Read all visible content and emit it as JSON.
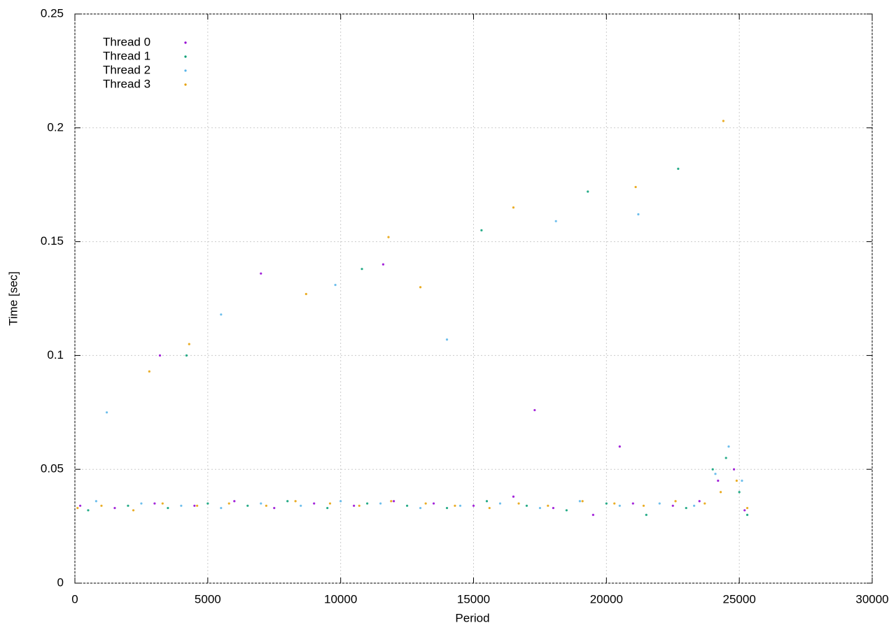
{
  "chart_data": {
    "type": "scatter",
    "x_label": "Period",
    "y_label": "Time [sec]",
    "xlim": [
      0,
      30000
    ],
    "xticks": [
      0,
      5000,
      10000,
      15000,
      20000,
      25000,
      30000
    ],
    "ylim": [
      0,
      0.25
    ],
    "yticks": [
      0,
      0.05,
      0.1,
      0.15,
      0.2,
      0.25
    ],
    "grid": true,
    "legend": "top-left",
    "series": [
      {
        "name": "Thread 0",
        "color": "#9400d3",
        "x": [
          200,
          1500,
          3000,
          4500,
          6000,
          7500,
          9000,
          10500,
          12000,
          13500,
          15000,
          16500,
          18000,
          19500,
          21000,
          22500,
          23500,
          24200,
          24800,
          25200,
          3200,
          7000,
          11600,
          17300,
          20500
        ],
        "values": [
          0.034,
          0.033,
          0.035,
          0.034,
          0.036,
          0.033,
          0.035,
          0.034,
          0.036,
          0.035,
          0.034,
          0.038,
          0.033,
          0.03,
          0.035,
          0.034,
          0.036,
          0.045,
          0.05,
          0.032,
          0.1,
          0.136,
          0.14,
          0.076,
          0.06
        ]
      },
      {
        "name": "Thread 1",
        "color": "#009e73",
        "x": [
          500,
          2000,
          3500,
          5000,
          6500,
          8000,
          9500,
          11000,
          12500,
          14000,
          15500,
          17000,
          18500,
          20000,
          21500,
          23000,
          24000,
          24500,
          25000,
          25300,
          4200,
          10800,
          15300,
          19300,
          22700
        ],
        "values": [
          0.032,
          0.034,
          0.033,
          0.035,
          0.034,
          0.036,
          0.033,
          0.035,
          0.034,
          0.033,
          0.036,
          0.034,
          0.032,
          0.035,
          0.03,
          0.033,
          0.05,
          0.055,
          0.04,
          0.03,
          0.1,
          0.138,
          0.155,
          0.172,
          0.182
        ]
      },
      {
        "name": "Thread 2",
        "color": "#56b4e9",
        "x": [
          800,
          2500,
          4000,
          5500,
          7000,
          8500,
          10000,
          11500,
          13000,
          14500,
          16000,
          17500,
          19000,
          20500,
          22000,
          23300,
          24100,
          24600,
          25100,
          1200,
          5500,
          9800,
          14000,
          18100,
          21200
        ],
        "values": [
          0.036,
          0.035,
          0.034,
          0.033,
          0.035,
          0.034,
          0.036,
          0.035,
          0.033,
          0.034,
          0.035,
          0.033,
          0.036,
          0.034,
          0.035,
          0.034,
          0.048,
          0.06,
          0.045,
          0.075,
          0.118,
          0.131,
          0.107,
          0.159,
          0.162
        ]
      },
      {
        "name": "Thread 3",
        "color": "#e69f00",
        "x": [
          100,
          1000,
          2200,
          3300,
          4600,
          5800,
          7200,
          8300,
          9600,
          10700,
          11900,
          13200,
          14300,
          15600,
          16700,
          17800,
          19100,
          20300,
          21400,
          22600,
          23700,
          24300,
          24900,
          25300,
          2800,
          4300,
          8700,
          11800,
          13000,
          16500,
          21100,
          24400
        ],
        "values": [
          0.033,
          0.034,
          0.032,
          0.035,
          0.034,
          0.035,
          0.034,
          0.036,
          0.035,
          0.034,
          0.036,
          0.035,
          0.034,
          0.033,
          0.035,
          0.034,
          0.036,
          0.035,
          0.034,
          0.036,
          0.035,
          0.04,
          0.045,
          0.033,
          0.093,
          0.105,
          0.127,
          0.152,
          0.13,
          0.165,
          0.174,
          0.203
        ]
      }
    ]
  }
}
